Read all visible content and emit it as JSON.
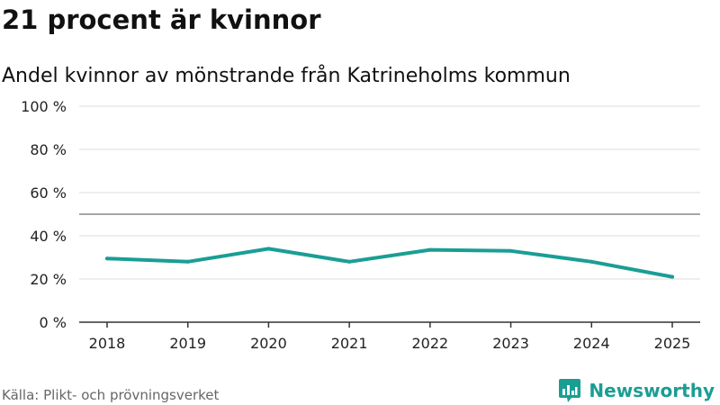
{
  "header": {
    "title": "21 procent är kvinnor",
    "subtitle": "Andel kvinnor av mönstrande från Katrineholms kommun"
  },
  "footer": {
    "source": "Källa: Plikt- och prövningsverket",
    "brand": "Newsworthy"
  },
  "colors": {
    "line": "#1a9e94",
    "grid": "#dddddd",
    "reference": "#888888",
    "axis": "#333333",
    "brand": "#1a9e94"
  },
  "chart_data": {
    "type": "line",
    "title": "21 procent är kvinnor",
    "subtitle": "Andel kvinnor av mönstrande från Katrineholms kommun",
    "xlabel": "",
    "ylabel": "",
    "categories": [
      "2018",
      "2019",
      "2020",
      "2021",
      "2022",
      "2023",
      "2024",
      "2025"
    ],
    "series": [
      {
        "name": "Andel kvinnor",
        "values": [
          29.5,
          28,
          34,
          28,
          33.5,
          33,
          28,
          21
        ]
      }
    ],
    "ylim": [
      0,
      100
    ],
    "yticks": [
      0,
      20,
      40,
      60,
      80,
      100
    ],
    "ytick_labels": [
      "0 %",
      "20 %",
      "40 %",
      "60 %",
      "80 %",
      "100 %"
    ],
    "reference_line": 50,
    "grid": true
  }
}
